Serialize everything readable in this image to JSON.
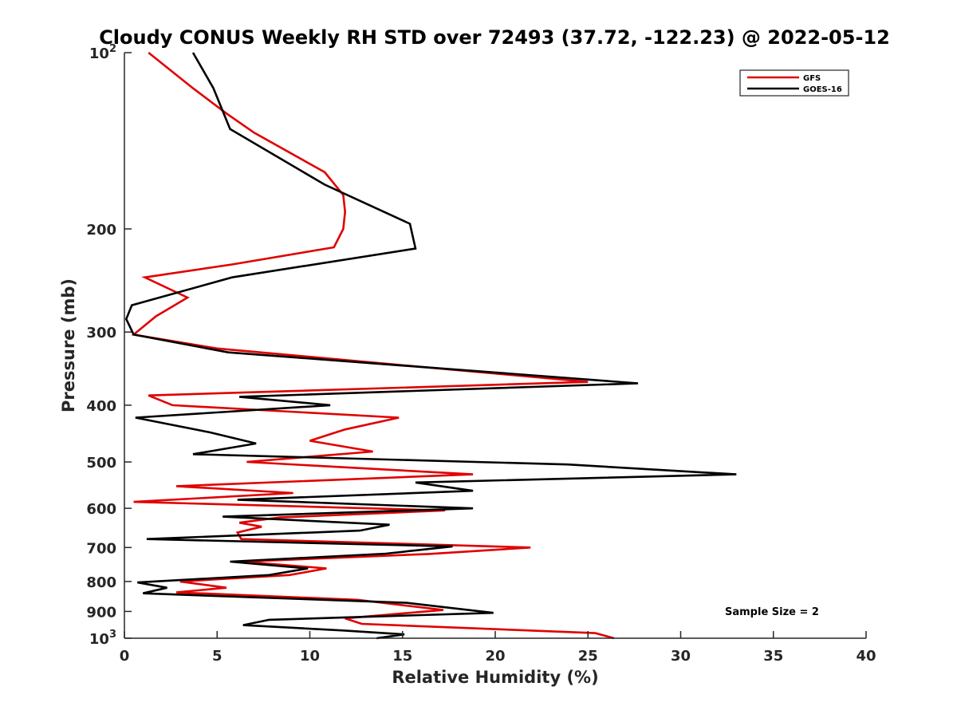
{
  "chart_data": {
    "type": "line",
    "title": "Cloudy CONUS Weekly RH STD over 72493 (37.72, -122.23) @ 2022-05-12",
    "xlabel": "Relative Humidity (%)",
    "ylabel": "Pressure (mb)",
    "xlim": [
      0,
      40
    ],
    "ylim": [
      100,
      1000
    ],
    "y_scale": "log",
    "y_reversed": true,
    "x_ticks": [
      "0",
      "5",
      "10",
      "15",
      "20",
      "25",
      "30",
      "35",
      "40"
    ],
    "y_ticks": [
      {
        "value": 100,
        "label": "10",
        "sup": "2"
      },
      {
        "value": 200,
        "label": "200",
        "sup": ""
      },
      {
        "value": 300,
        "label": "300",
        "sup": ""
      },
      {
        "value": 400,
        "label": "400",
        "sup": ""
      },
      {
        "value": 500,
        "label": "500",
        "sup": ""
      },
      {
        "value": 600,
        "label": "600",
        "sup": ""
      },
      {
        "value": 700,
        "label": "700",
        "sup": ""
      },
      {
        "value": 800,
        "label": "800",
        "sup": ""
      },
      {
        "value": 900,
        "label": "900",
        "sup": ""
      },
      {
        "value": 1000,
        "label": "10",
        "sup": "3"
      }
    ],
    "legend_position": "top-right",
    "grid": false,
    "annotation": "Sample Size = 2",
    "series": [
      {
        "name": "GFS",
        "color": "#e00000",
        "points": [
          [
            1.3,
            100
          ],
          [
            3.7,
            115
          ],
          [
            5.5,
            127
          ],
          [
            7.0,
            137
          ],
          [
            10.8,
            160
          ],
          [
            11.8,
            175
          ],
          [
            11.9,
            187
          ],
          [
            11.8,
            200
          ],
          [
            11.3,
            215
          ],
          [
            5.8,
            230
          ],
          [
            1.1,
            242
          ],
          [
            3.4,
            262
          ],
          [
            1.7,
            282
          ],
          [
            0.5,
            303
          ],
          [
            5.0,
            320
          ],
          [
            25.0,
            365
          ],
          [
            1.3,
            385
          ],
          [
            2.6,
            400
          ],
          [
            14.8,
            420
          ],
          [
            11.9,
            440
          ],
          [
            10.0,
            460
          ],
          [
            13.4,
            480
          ],
          [
            6.6,
            500
          ],
          [
            18.8,
            525
          ],
          [
            2.8,
            550
          ],
          [
            9.1,
            565
          ],
          [
            0.5,
            585
          ],
          [
            17.3,
            605
          ],
          [
            8.4,
            622
          ],
          [
            6.2,
            635
          ],
          [
            7.4,
            645
          ],
          [
            6.1,
            660
          ],
          [
            6.3,
            677
          ],
          [
            21.9,
            700
          ],
          [
            16.4,
            718
          ],
          [
            6.4,
            740
          ],
          [
            10.9,
            760
          ],
          [
            8.9,
            780
          ],
          [
            3.0,
            800
          ],
          [
            5.5,
            820
          ],
          [
            2.8,
            835
          ],
          [
            12.6,
            860
          ],
          [
            17.2,
            895
          ],
          [
            11.9,
            925
          ],
          [
            12.8,
            945
          ],
          [
            25.4,
            980
          ],
          [
            26.4,
            1000
          ]
        ]
      },
      {
        "name": "GOES-16",
        "color": "#000000",
        "points": [
          [
            3.7,
            100
          ],
          [
            4.8,
            115
          ],
          [
            5.7,
            135
          ],
          [
            10.8,
            168
          ],
          [
            15.4,
            196
          ],
          [
            15.7,
            216
          ],
          [
            5.8,
            242
          ],
          [
            0.4,
            270
          ],
          [
            0.1,
            285
          ],
          [
            0.5,
            303
          ],
          [
            5.6,
            325
          ],
          [
            27.7,
            367
          ],
          [
            6.2,
            387
          ],
          [
            11.1,
            400
          ],
          [
            0.6,
            420
          ],
          [
            4.6,
            445
          ],
          [
            7.1,
            465
          ],
          [
            3.7,
            485
          ],
          [
            23.9,
            505
          ],
          [
            33.0,
            525
          ],
          [
            15.7,
            542
          ],
          [
            18.8,
            560
          ],
          [
            6.1,
            580
          ],
          [
            18.8,
            600
          ],
          [
            5.3,
            620
          ],
          [
            14.3,
            640
          ],
          [
            12.7,
            655
          ],
          [
            1.2,
            677
          ],
          [
            17.7,
            697
          ],
          [
            14.1,
            717
          ],
          [
            5.7,
            740
          ],
          [
            9.9,
            760
          ],
          [
            7.8,
            780
          ],
          [
            0.7,
            803
          ],
          [
            2.3,
            820
          ],
          [
            1.0,
            838
          ],
          [
            15.2,
            870
          ],
          [
            19.9,
            905
          ],
          [
            7.8,
            930
          ],
          [
            6.4,
            950
          ],
          [
            11.8,
            970
          ],
          [
            15.1,
            985
          ],
          [
            13.6,
            1000
          ]
        ]
      }
    ]
  }
}
